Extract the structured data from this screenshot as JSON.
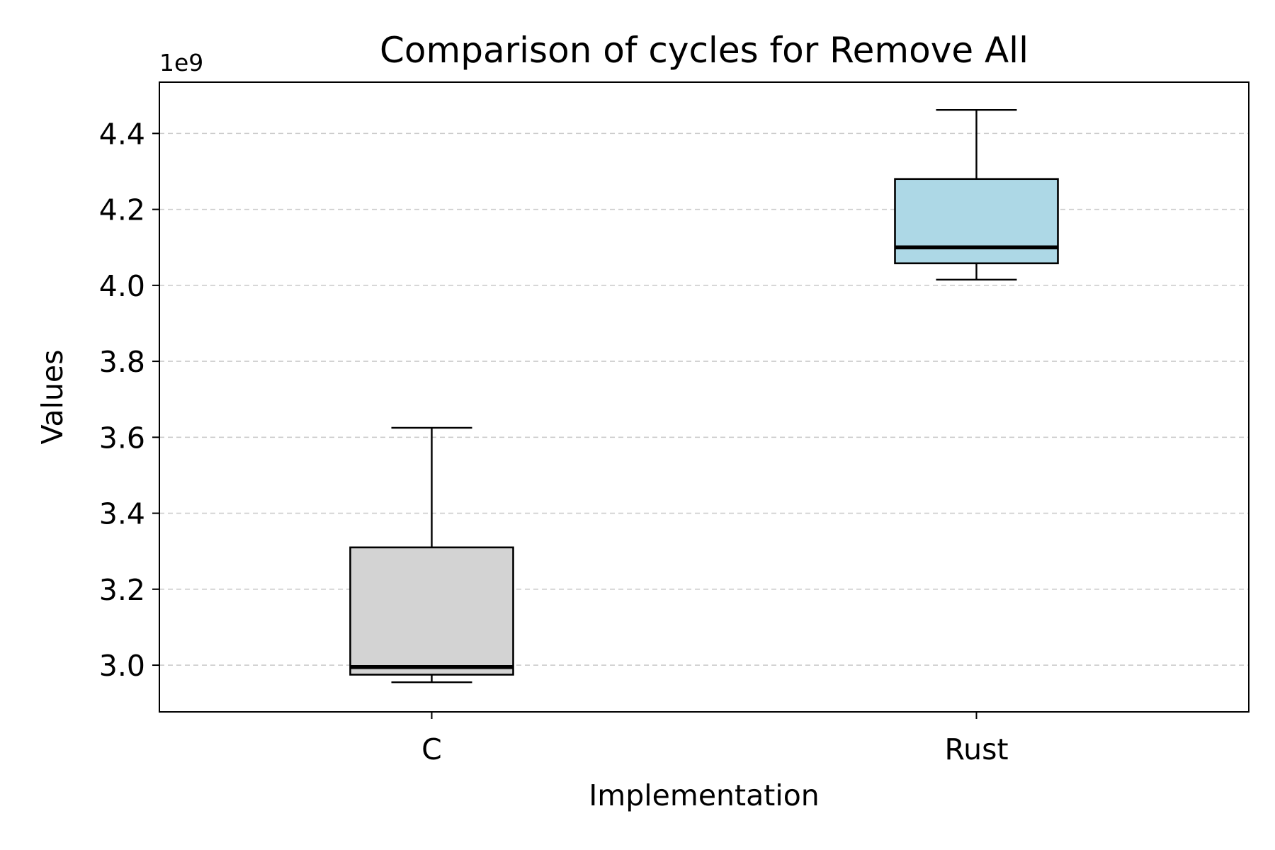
{
  "chart_data": {
    "type": "box",
    "title": "Comparison of cycles for Remove All",
    "xlabel": "Implementation",
    "ylabel": "Values",
    "y_offset_label": "1e9",
    "categories": [
      "C",
      "Rust"
    ],
    "boxes": [
      {
        "category": "C",
        "whisker_low": 2.955,
        "q1": 2.975,
        "median": 2.995,
        "q3": 3.31,
        "whisker_high": 3.625,
        "fill": "#d3d3d3"
      },
      {
        "category": "Rust",
        "whisker_low": 4.015,
        "q1": 4.058,
        "median": 4.1,
        "q3": 4.28,
        "whisker_high": 4.462,
        "fill": "#add8e6"
      }
    ],
    "yticks": [
      "3.0",
      "3.2",
      "3.4",
      "3.6",
      "3.8",
      "4.0",
      "4.2",
      "4.4"
    ],
    "ylim": [
      2.877,
      4.535
    ],
    "grid": "y-dashed",
    "colors": {
      "grid": "#cccccc",
      "axis": "#000000",
      "median": "#000000"
    }
  }
}
